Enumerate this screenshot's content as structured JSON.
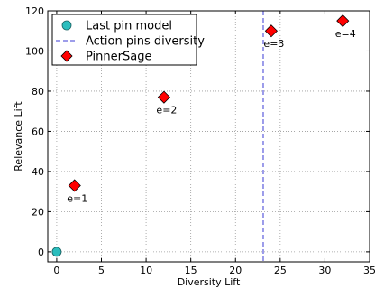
{
  "chart_data": {
    "type": "scatter",
    "title": "",
    "xlabel": "Diversity Lift",
    "ylabel": "Relevance Lift",
    "xlim": [
      -1,
      35
    ],
    "ylim": [
      -5,
      120
    ],
    "xticks": [
      0,
      5,
      10,
      15,
      20,
      25,
      30,
      35
    ],
    "yticks": [
      0,
      20,
      40,
      60,
      80,
      100,
      120
    ],
    "grid": true,
    "legend_position": "top-left",
    "series": [
      {
        "name": "Last pin model",
        "marker": "circle",
        "color": "#2bbdbd",
        "points": [
          {
            "x": 0,
            "y": 0
          }
        ]
      },
      {
        "name": "Action pins diversity",
        "marker": "vertical-dashed-line",
        "color": "#3b3bd6",
        "x": 23.1
      },
      {
        "name": "PinnerSage",
        "marker": "diamond",
        "color": "#ff0000",
        "points": [
          {
            "x": 2,
            "y": 33,
            "label": "e=1"
          },
          {
            "x": 12,
            "y": 77,
            "label": "e=2"
          },
          {
            "x": 24,
            "y": 110,
            "label": "e=3"
          },
          {
            "x": 32,
            "y": 115,
            "label": "e=4"
          }
        ]
      }
    ]
  }
}
